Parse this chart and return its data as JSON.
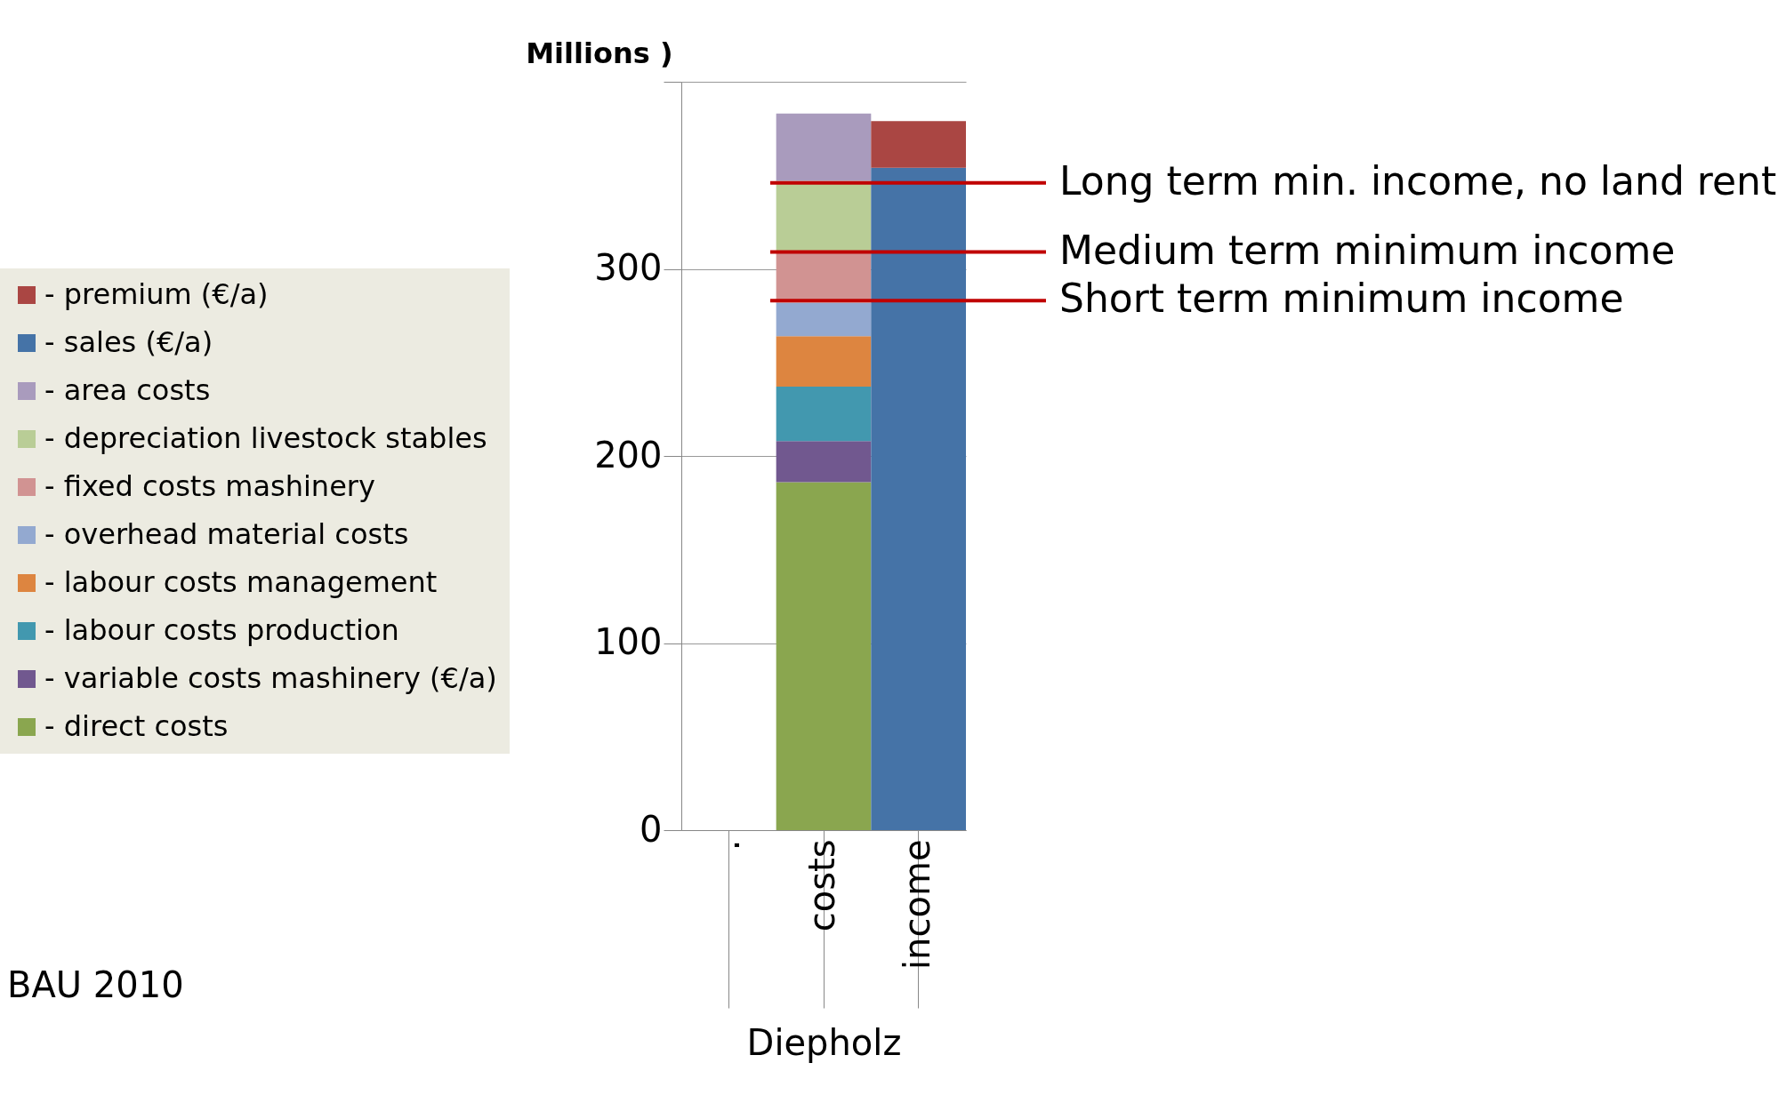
{
  "chart_data": {
    "type": "bar",
    "stacked": true,
    "ylabel": "Millions )",
    "xlabel": "Diepholz",
    "categories": [
      ".",
      "costs",
      "income"
    ],
    "series": [
      {
        "name": "- direct costs",
        "color": "#8aa64f",
        "values": [
          null,
          186,
          null
        ]
      },
      {
        "name": "- variable costs mashinery (€/a)",
        "color": "#71588f",
        "values": [
          null,
          22,
          null
        ]
      },
      {
        "name": "- labour costs production",
        "color": "#4298af",
        "values": [
          null,
          29,
          null
        ]
      },
      {
        "name": "- labour costs management",
        "color": "#dd8540",
        "values": [
          null,
          27,
          null
        ]
      },
      {
        "name": "- overhead material costs",
        "color": "#93a9d0",
        "values": [
          null,
          18,
          null
        ]
      },
      {
        "name": "- fixed costs mashinery",
        "color": "#d19392",
        "values": [
          null,
          27,
          null
        ]
      },
      {
        "name": "- depreciation livestock stables",
        "color": "#b9cd96",
        "values": [
          null,
          38,
          null
        ]
      },
      {
        "name": "- area costs",
        "color": "#a99bbd",
        "values": [
          null,
          36,
          null
        ]
      },
      {
        "name": "- sales (€/a)",
        "color": "#4573a7",
        "values": [
          null,
          null,
          354
        ]
      },
      {
        "name": "- premium (€/a)",
        "color": "#aa4643",
        "values": [
          null,
          null,
          25
        ]
      }
    ],
    "ylim": [
      0,
      400
    ],
    "yticks": [
      0,
      100,
      200,
      300,
      {
        "value": 400,
        "label": null
      }
    ],
    "grid": "y",
    "legend": "left",
    "ref_lines": [
      {
        "axis": "y",
        "value": 346,
        "label": "Long term min. income, no land rent",
        "color": "#c00000"
      },
      {
        "axis": "y",
        "value": 309,
        "label": "Medium term minimum income",
        "color": "#c00000"
      },
      {
        "axis": "y",
        "value": 283,
        "label": "Short term minimum income",
        "color": "#c00000"
      }
    ],
    "annotations": [
      "BAU 2010"
    ]
  }
}
